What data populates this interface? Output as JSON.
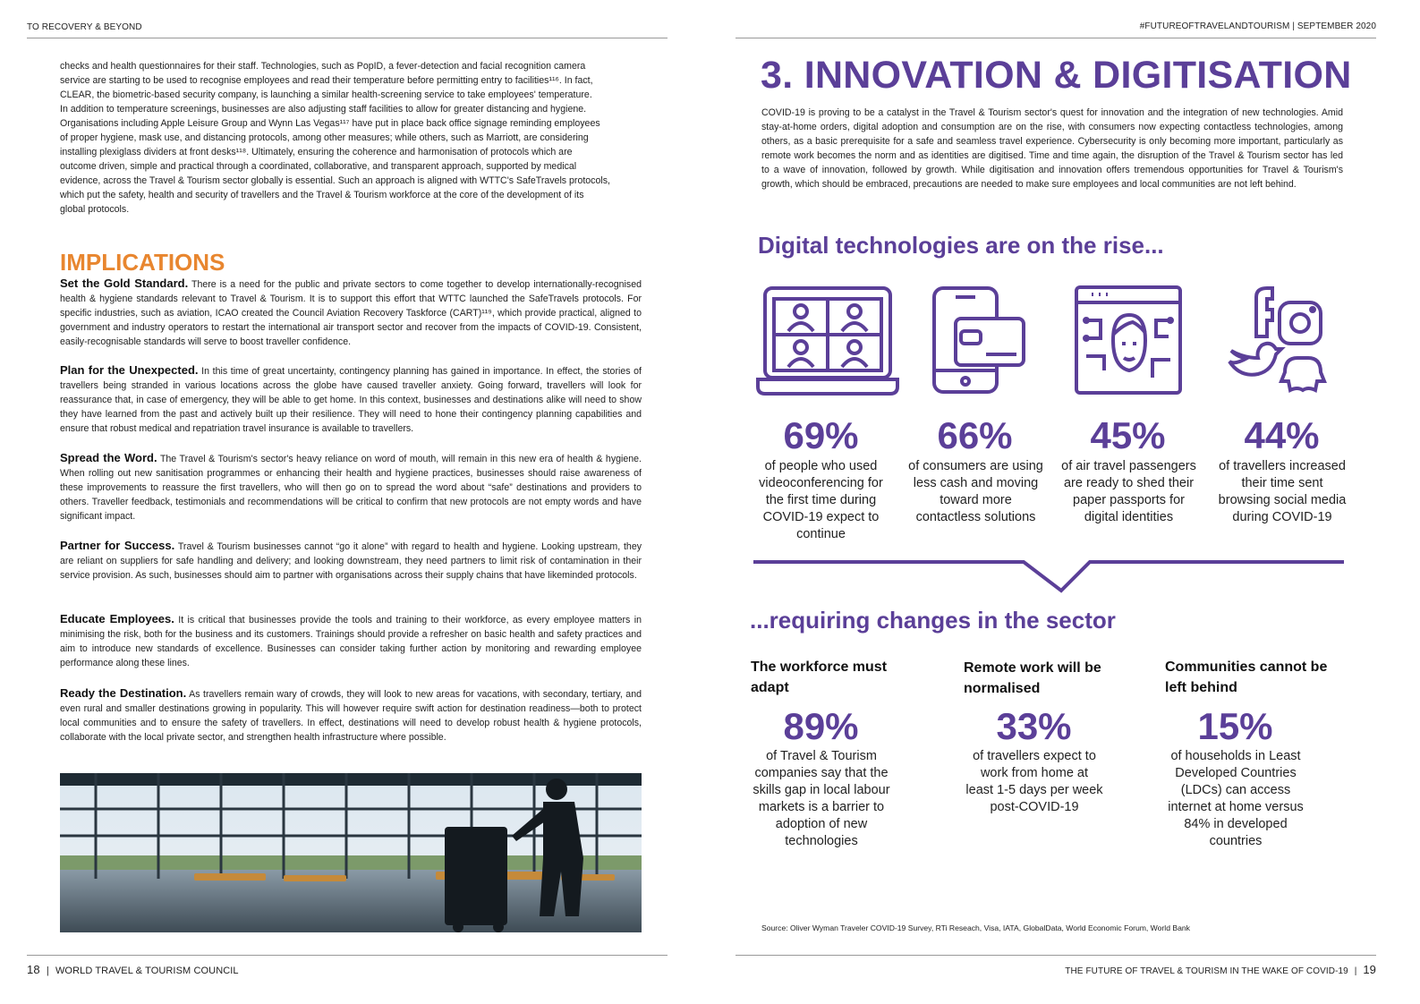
{
  "header": {
    "left": "TO RECOVERY & BEYOND",
    "right": "#FUTUREOFTRAVELANDTOURISM | SEPTEMBER 2020"
  },
  "footer": {
    "left_page": "18",
    "left_text": "WORLD TRAVEL & TOURISM COUNCIL",
    "right_text": "THE FUTURE OF TRAVEL & TOURISM IN THE WAKE OF COVID-19",
    "right_page": "19"
  },
  "left": {
    "intro_lines": [
      "checks and health questionnaires for their staff. Technologies, such as PopID, a fever-detection and facial recognition camera",
      "service are starting to be used to recognise employees and read their temperature before permitting entry to facilities¹¹⁶. In fact,",
      "CLEAR, the biometric-based security company, is launching a similar health-screening service to take employees' temperature.",
      "In addition to temperature screenings, businesses are also adjusting staff facilities to allow for greater distancing and hygiene.",
      "Organisations including Apple Leisure Group and Wynn Las Vegas¹¹⁷ have put in place back office signage reminding employees",
      "of proper hygiene, mask use, and distancing protocols, among other measures; while others, such as Marriott, are considering",
      "installing plexiglass dividers at front desks¹¹⁸. Ultimately, ensuring the coherence and harmonisation of protocols which are",
      "outcome driven, simple and practical through a coordinated, collaborative, and transparent approach, supported by medical",
      "evidence, across the Travel & Tourism sector globally is essential. Such an approach is aligned with WTTC's SafeTravels protocols,",
      "which put the safety, health and security of travellers and the Travel & Tourism workforce at the core of the development of its",
      "global protocols."
    ],
    "implications_title": "IMPLICATIONS",
    "paragraphs": [
      {
        "heading": "Set the Gold Standard.",
        "text": "There is a need for the public and private sectors to come together to develop internationally-recognised health & hygiene standards relevant to Travel & Tourism. It is to support this effort that WTTC launched the SafeTravels protocols. For specific industries, such as aviation, ICAO created the Council Aviation Recovery Taskforce (CART)¹¹⁹, which provide practical, aligned to government and industry operators to restart the international air transport sector and recover from the impacts of COVID-19.  Consistent, easily-recognisable standards will serve to boost traveller confidence."
      },
      {
        "heading": "Plan for the Unexpected.",
        "text": "In this time of great uncertainty, contingency planning has gained in importance. In effect, the stories of travellers being stranded in various locations across the globe have caused traveller anxiety. Going forward, travellers will look for reassurance that, in case of emergency, they will be able to get home. In this context, businesses and destinations alike will need to show they have learned from the past and actively built up their resilience. They will need to hone their contingency planning capabilities and ensure that robust medical and repatriation travel insurance is available to travellers."
      },
      {
        "heading": "Spread the Word.",
        "text": "The Travel & Tourism's sector's heavy reliance on word of mouth, will remain in this new era of health & hygiene. When rolling out new sanitisation programmes or enhancing their health and hygiene practices, businesses should raise awareness of these improvements to reassure the first travellers, who will then go on to spread the word about “safe” destinations and providers to others. Traveller feedback, testimonials and recommendations will be critical to confirm that new protocols are not empty words and have significant impact."
      },
      {
        "heading": "Partner for Success.",
        "text": "Travel & Tourism businesses cannot “go it alone” with regard to health and hygiene. Looking upstream, they are reliant on suppliers for safe handling and delivery; and looking downstream, they need partners to limit risk of contamination in their service provision. As such, businesses should aim to partner with organisations across their supply chains that have likeminded protocols."
      },
      {
        "heading": "Educate Employees.",
        "text": "It is critical that businesses provide the tools and training to their workforce, as every employee matters in minimising the risk, both for the business and its customers. Trainings should provide a refresher on basic health and safety practices and aim to introduce new standards of excellence. Businesses can consider taking further action by monitoring and rewarding employee performance along these lines."
      },
      {
        "heading": "Ready the Destination.",
        "text": "As travellers remain wary of crowds, they will look to new areas for vacations, with secondary, tertiary, and even rural and smaller destinations growing in popularity. This will however require swift action for destination readiness—both to protect local communities and to ensure the safety of travellers. In effect, destinations will need to develop robust health & hygiene protocols, collaborate with the local private sector, and strengthen health infrastructure where possible."
      }
    ]
  },
  "right": {
    "title": "3. INNOVATION & DIGITISATION",
    "intro": "COVID-19 is proving to be a catalyst in the Travel & Tourism sector's quest for innovation and the integration of new technologies. Amid stay-at-home orders, digital adoption and consumption are on the rise, with consumers now expecting contactless technologies, among others, as a basic prerequisite for a safe and seamless travel experience. Cybersecurity is only becoming more important, particularly as remote work becomes the norm and as identities are digitised. Time and time again, the disruption of the Travel & Tourism sector has led to a wave of innovation, followed by growth. While digitisation and innovation offers tremendous opportunities for Travel & Tourism's growth, which should be embraced, precautions are needed to make sure employees and local communities are not left behind.",
    "rise_title": "Digital technologies are on the rise...",
    "stats": [
      {
        "icon": "laptop-video-call-icon",
        "value": "69%",
        "lines": [
          "of people who used",
          "videoconferencing for",
          "the first time during",
          "COVID-19 expect to",
          "continue"
        ]
      },
      {
        "icon": "phone-payment-card-icon",
        "value": "66%",
        "lines": [
          "of consumers are using",
          "less cash and moving",
          "toward more",
          "contactless solutions"
        ]
      },
      {
        "icon": "digital-face-id-icon",
        "value": "45%",
        "lines": [
          "of air travel passengers",
          "are ready to shed their",
          "paper passports for",
          "digital identities"
        ]
      },
      {
        "icon": "social-media-icons",
        "value": "44%",
        "lines": [
          "of travellers increased",
          "their time sent",
          "browsing social media",
          "during COVID-19"
        ]
      }
    ],
    "changes_title": "...requiring changes in the sector",
    "changes": [
      {
        "heading_lines": [
          "The workforce must",
          "adapt"
        ],
        "value": "89%",
        "lines": [
          "of Travel & Tourism",
          "companies say that the",
          "skills gap in local labour",
          "markets is a barrier to",
          "adoption of new",
          "technologies"
        ]
      },
      {
        "heading_lines": [
          "Remote work will be",
          "normalised"
        ],
        "value": "33%",
        "lines": [
          "of travellers expect to",
          "work from home at",
          "least 1-5 days per week",
          "post-COVID-19"
        ]
      },
      {
        "heading_lines": [
          "Communities cannot be",
          "left behind"
        ],
        "value": "15%",
        "lines": [
          "of households in Least",
          "Developed Countries",
          "(LDCs) can access",
          "internet at home versus",
          "84% in developed",
          "countries"
        ]
      }
    ],
    "source": "Source: Oliver Wyman Traveler COVID-19 Survey, RTi Reseach, Visa, IATA, GlobalData, World Economic Forum, World Bank"
  },
  "colors": {
    "purple": "#5b3f98",
    "orange": "#e8862f",
    "rule": "#999999"
  }
}
